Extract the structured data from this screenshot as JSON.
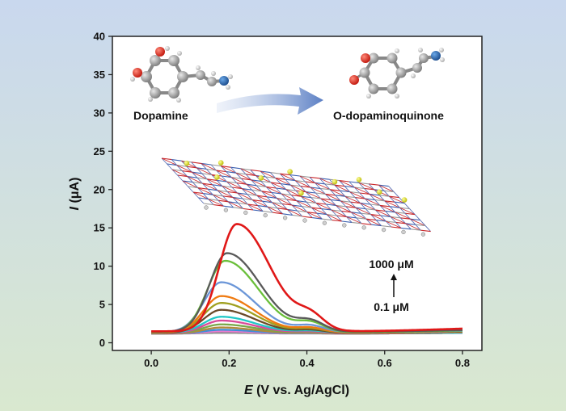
{
  "chart_data": {
    "type": "line",
    "xlabel": "E (V vs. Ag/AgCl)",
    "ylabel": "I (μA)",
    "xlim": [
      -0.1,
      0.85
    ],
    "ylim": [
      -1,
      40
    ],
    "xticks": [
      "0.0",
      "0.2",
      "0.4",
      "0.6",
      "0.8"
    ],
    "yticks": [
      "0",
      "5",
      "10",
      "15",
      "20",
      "25",
      "30",
      "35",
      "40"
    ],
    "grid": false,
    "x_range": [
      0.0,
      0.8
    ],
    "concentration_high": "1000 μM",
    "concentration_low": "0.1 μM",
    "series": [
      {
        "color": "#8a8a8a",
        "baseline": 1.2,
        "tail": 1.3,
        "peak_x": 0.18,
        "peak_y": 1.3
      },
      {
        "color": "#e87ad0",
        "baseline": 1.2,
        "tail": 1.3,
        "peak_x": 0.18,
        "peak_y": 1.5
      },
      {
        "color": "#3f8fd8",
        "baseline": 1.2,
        "tail": 1.3,
        "peak_x": 0.18,
        "peak_y": 1.7
      },
      {
        "color": "#b38a3a",
        "baseline": 1.2,
        "tail": 1.35,
        "peak_x": 0.18,
        "peak_y": 2.0
      },
      {
        "color": "#7aa84a",
        "baseline": 1.25,
        "tail": 1.35,
        "peak_x": 0.18,
        "peak_y": 2.4
      },
      {
        "color": "#d94a9a",
        "baseline": 1.25,
        "tail": 1.4,
        "peak_x": 0.18,
        "peak_y": 2.9
      },
      {
        "color": "#22c7c7",
        "baseline": 1.3,
        "tail": 1.4,
        "peak_x": 0.18,
        "peak_y": 3.4
      },
      {
        "color": "#6b4a2a",
        "baseline": 1.3,
        "tail": 1.45,
        "peak_x": 0.18,
        "peak_y": 4.3
      },
      {
        "color": "#a0a020",
        "baseline": 1.35,
        "tail": 1.5,
        "peak_x": 0.18,
        "peak_y": 5.2
      },
      {
        "color": "#ef7a10",
        "baseline": 1.35,
        "tail": 1.5,
        "peak_x": 0.18,
        "peak_y": 6.1
      },
      {
        "color": "#6b96d8",
        "baseline": 1.4,
        "tail": 1.55,
        "peak_x": 0.18,
        "peak_y": 7.9
      },
      {
        "color": "#6abf3a",
        "baseline": 1.4,
        "tail": 1.6,
        "peak_x": 0.19,
        "peak_y": 10.7
      },
      {
        "color": "#595959",
        "baseline": 1.45,
        "tail": 1.65,
        "peak_x": 0.195,
        "peak_y": 11.7
      },
      {
        "color": "#e01818",
        "baseline": 1.5,
        "tail": 1.85,
        "peak_x": 0.22,
        "peak_y": 15.5
      }
    ]
  },
  "molecules": {
    "left_label": "Dopamine",
    "right_label": "O-dopaminoquinone"
  },
  "colors": {
    "background_top": "#c9d8ee",
    "background_bottom": "#d9e8cf",
    "plot_background": "#ffffff",
    "arrow": "#5b7fc4"
  }
}
